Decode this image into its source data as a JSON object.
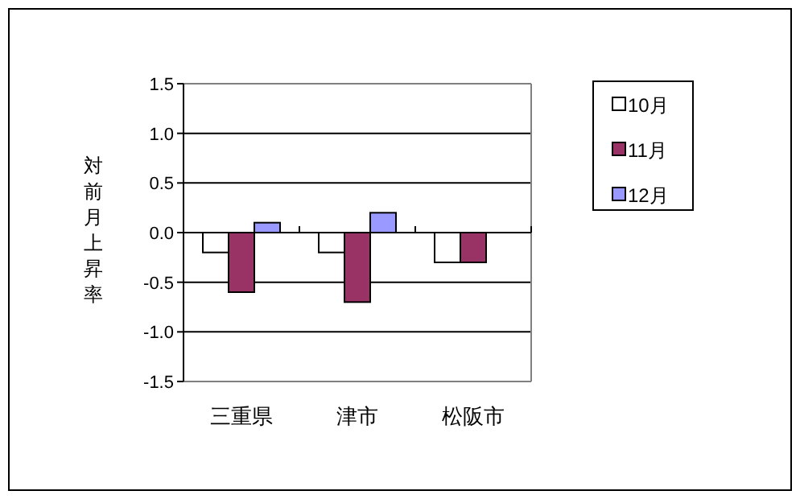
{
  "chart_data": {
    "type": "bar",
    "ylabel": "対前月上昇率",
    "categories": [
      "三重県",
      "津市",
      "松阪市"
    ],
    "series": [
      {
        "name": "10月",
        "color": "#ffffff",
        "values": [
          -0.2,
          -0.2,
          -0.3
        ]
      },
      {
        "name": "11月",
        "color": "#993366",
        "values": [
          -0.6,
          -0.7,
          -0.3
        ]
      },
      {
        "name": "12月",
        "color": "#9999ff",
        "values": [
          0.1,
          0.2,
          0.0
        ]
      }
    ],
    "ylim": [
      -1.5,
      1.5
    ],
    "yticks": [
      {
        "value": -1.5,
        "label": "-1.5"
      },
      {
        "value": -1.0,
        "label": "-1.0"
      },
      {
        "value": -0.5,
        "label": "-0.5"
      },
      {
        "value": 0,
        "label": "0.0"
      },
      {
        "value": 0.5,
        "label": "0.5"
      },
      {
        "value": 1.0,
        "label": "1.0"
      },
      {
        "value": 1.5,
        "label": "1.5"
      }
    ],
    "grid": "y",
    "legend": "right"
  }
}
